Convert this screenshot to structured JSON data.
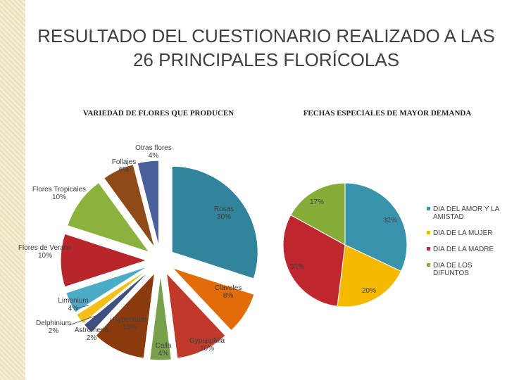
{
  "slide": {
    "title": "RESULTADO DEL CUESTIONARIO REALIZADO A LAS 26 PRINCIPALES FLORÍCOLAS"
  },
  "chart_data": [
    {
      "type": "pie",
      "title": "VARIEDAD DE FLORES QUE PRODUCEN",
      "exploded": true,
      "slices": [
        {
          "label": "Rosas",
          "pct": "30%",
          "value": 30,
          "color": "#31849b"
        },
        {
          "label": "Claveles",
          "pct": "8%",
          "value": 8,
          "color": "#e36c0a"
        },
        {
          "label": "Gypsophila",
          "pct": "10%",
          "value": 10,
          "color": "#c0392b"
        },
        {
          "label": "Calla",
          "pct": "4%",
          "value": 4,
          "color": "#77a04a"
        },
        {
          "label": "Hypericum",
          "pct": "10%",
          "value": 10,
          "color": "#8b3a0e"
        },
        {
          "label": "Astromeria",
          "pct": "2%",
          "value": 2,
          "color": "#3f4f7f"
        },
        {
          "label": "Delphinium",
          "pct": "2%",
          "value": 2,
          "color": "#f3c019"
        },
        {
          "label": "Limonium",
          "pct": "4%",
          "value": 4,
          "color": "#4aacc6"
        },
        {
          "label": "Flores de Verano",
          "pct": "10%",
          "value": 10,
          "color": "#b8262c"
        },
        {
          "label": "Flores Tropicales",
          "pct": "10%",
          "value": 10,
          "color": "#8bb23f"
        },
        {
          "label": "Follajes",
          "pct": "6%",
          "value": 6,
          "color": "#8e4a17"
        },
        {
          "label": "Otras flores",
          "pct": "4%",
          "value": 4,
          "color": "#4a5f9d"
        }
      ]
    },
    {
      "type": "pie",
      "title": "FECHAS ESPECIALES DE MAYOR DEMANDA",
      "legend_position": "right",
      "slices": [
        {
          "label": "DIA DEL AMOR Y LA AMISTAD",
          "pct": "32%",
          "value": 32,
          "color": "#3a93ad"
        },
        {
          "label": "DIA DE LA MUJER",
          "pct": "20%",
          "value": 20,
          "color": "#f7b800"
        },
        {
          "label": "DIA DE LA MADRE",
          "pct": "31%",
          "value": 31,
          "color": "#c0262d"
        },
        {
          "label": "DIA DE LOS DIFUNTOS",
          "pct": "17%",
          "value": 17,
          "color": "#86ad3a"
        }
      ]
    }
  ]
}
